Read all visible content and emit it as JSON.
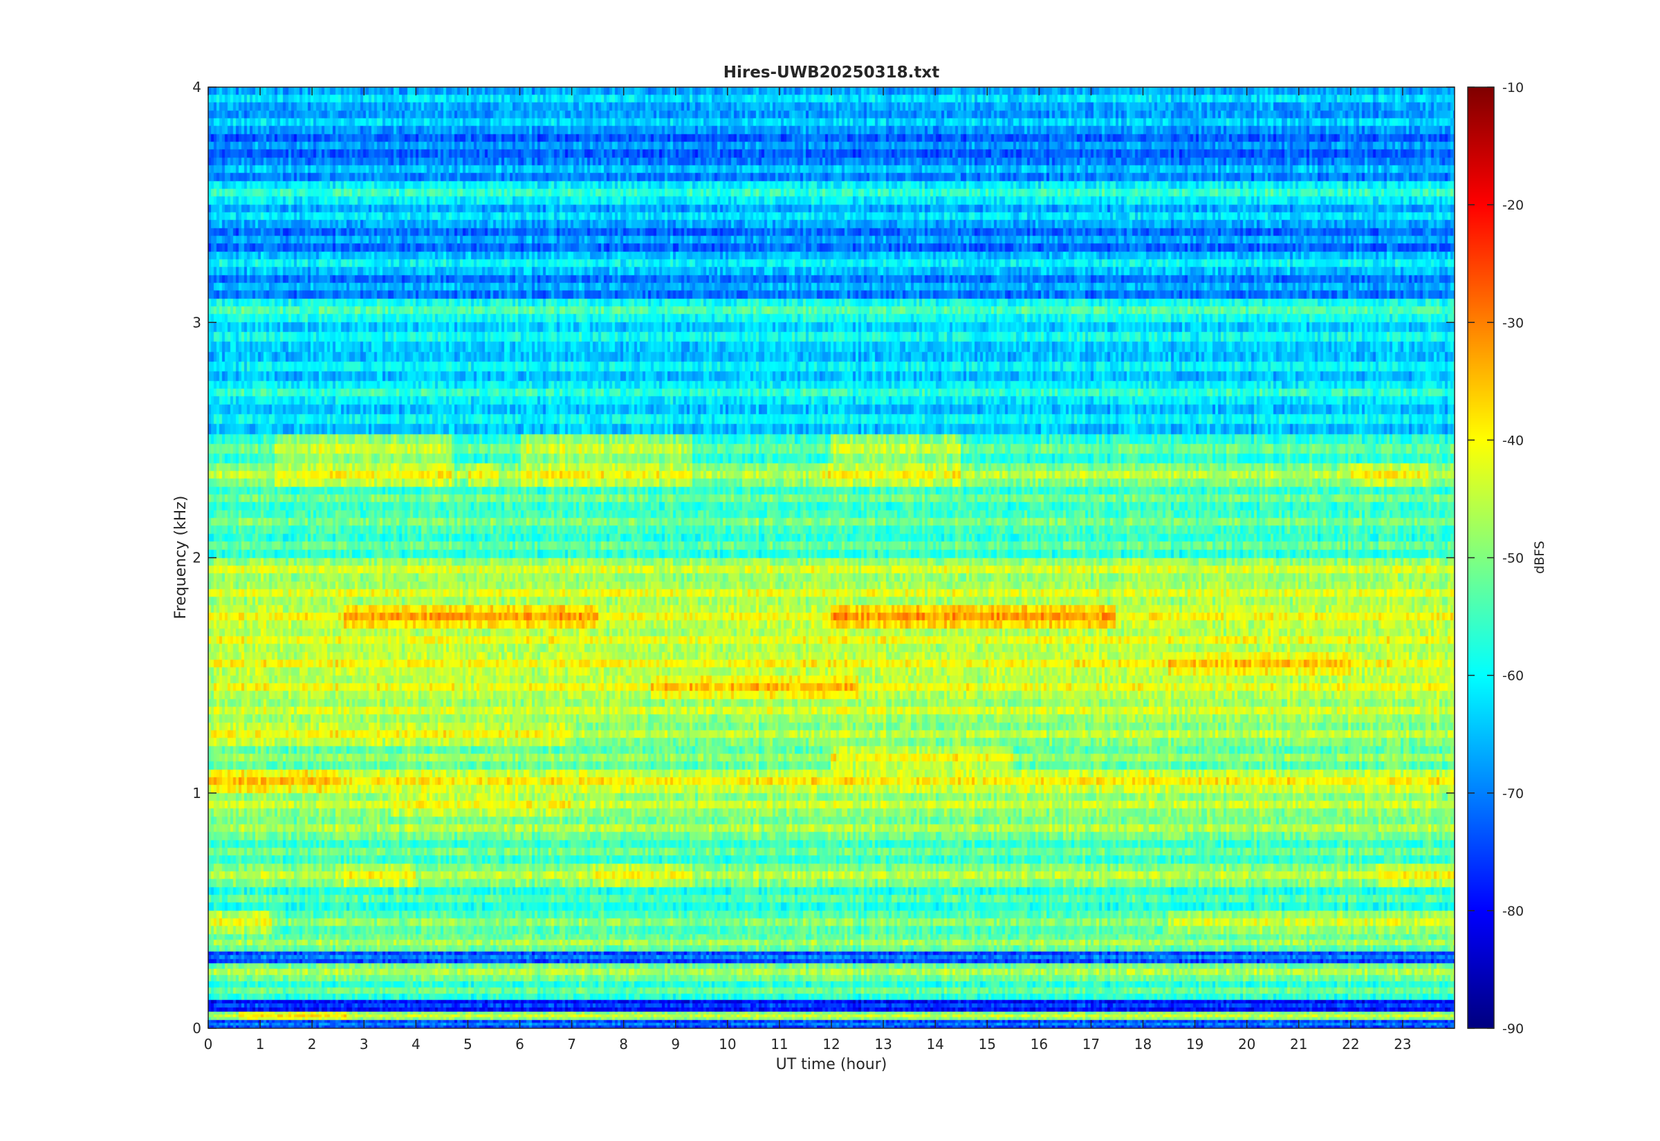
{
  "chart_data": {
    "type": "heatmap",
    "title": "Hires-UWB20250318.txt",
    "xlabel": "UT time (hour)",
    "ylabel": "Frequency (kHz)",
    "colorbar_label": "dBFS",
    "colormap": "jet",
    "xlim": [
      0,
      24
    ],
    "ylim": [
      0,
      4
    ],
    "clim": [
      -90,
      -10
    ],
    "x_ticks": [
      0,
      1,
      2,
      3,
      4,
      5,
      6,
      7,
      8,
      9,
      10,
      11,
      12,
      13,
      14,
      15,
      16,
      17,
      18,
      19,
      20,
      21,
      22,
      23
    ],
    "y_ticks": [
      0,
      1,
      2,
      3,
      4
    ],
    "colorbar_ticks": [
      -90,
      -80,
      -70,
      -60,
      -50,
      -40,
      -30,
      -20,
      -10
    ],
    "grid": false,
    "background_level_dbfs": -63,
    "bands": [
      {
        "freq_khz": 0.02,
        "level_dbfs": -70
      },
      {
        "freq_khz": 0.05,
        "level_dbfs": -44,
        "segments": [
          {
            "x_start": 0.6,
            "x_end": 2.7,
            "level_dbfs": -38
          }
        ]
      },
      {
        "freq_khz": 0.09,
        "level_dbfs": -75
      },
      {
        "freq_khz": 0.15,
        "level_dbfs": -52
      },
      {
        "freq_khz": 0.25,
        "level_dbfs": -46
      },
      {
        "freq_khz": 0.3,
        "level_dbfs": -70
      },
      {
        "freq_khz": 0.35,
        "level_dbfs": -47
      },
      {
        "freq_khz": 0.45,
        "level_dbfs": -49,
        "segments": [
          {
            "x_start": 0,
            "x_end": 1.2,
            "level_dbfs": -41
          },
          {
            "x_start": 18.5,
            "x_end": 24,
            "level_dbfs": -43
          }
        ]
      },
      {
        "freq_khz": 0.55,
        "level_dbfs": -53
      },
      {
        "freq_khz": 0.65,
        "level_dbfs": -45,
        "segments": [
          {
            "x_start": 2.6,
            "x_end": 4.0,
            "level_dbfs": -40
          },
          {
            "x_start": 7.4,
            "x_end": 9.3,
            "level_dbfs": -40
          },
          {
            "x_start": 22.5,
            "x_end": 24,
            "level_dbfs": -40
          }
        ]
      },
      {
        "freq_khz": 0.75,
        "level_dbfs": -51
      },
      {
        "freq_khz": 0.85,
        "level_dbfs": -46
      },
      {
        "freq_khz": 0.95,
        "level_dbfs": -44,
        "segments": [
          {
            "x_start": 3.5,
            "x_end": 7.0,
            "level_dbfs": -40
          }
        ]
      },
      {
        "freq_khz": 1.05,
        "level_dbfs": -39,
        "segments": [
          {
            "x_start": 0,
            "x_end": 2.5,
            "level_dbfs": -35
          }
        ]
      },
      {
        "freq_khz": 1.15,
        "level_dbfs": -48,
        "segments": [
          {
            "x_start": 12,
            "x_end": 15.5,
            "level_dbfs": -40
          }
        ]
      },
      {
        "freq_khz": 1.25,
        "level_dbfs": -45,
        "segments": [
          {
            "x_start": 0,
            "x_end": 7.0,
            "level_dbfs": -40
          }
        ]
      },
      {
        "freq_khz": 1.35,
        "level_dbfs": -43
      },
      {
        "freq_khz": 1.45,
        "level_dbfs": -41,
        "segments": [
          {
            "x_start": 8.5,
            "x_end": 12.5,
            "level_dbfs": -35
          }
        ]
      },
      {
        "freq_khz": 1.55,
        "level_dbfs": -40,
        "segments": [
          {
            "x_start": 18.5,
            "x_end": 22,
            "level_dbfs": -35
          }
        ]
      },
      {
        "freq_khz": 1.65,
        "level_dbfs": -41
      },
      {
        "freq_khz": 1.75,
        "level_dbfs": -40,
        "segments": [
          {
            "x_start": 2.6,
            "x_end": 7.5,
            "level_dbfs": -33
          },
          {
            "x_start": 12,
            "x_end": 17.5,
            "level_dbfs": -32
          }
        ]
      },
      {
        "freq_khz": 1.85,
        "level_dbfs": -42
      },
      {
        "freq_khz": 1.95,
        "level_dbfs": -43
      },
      {
        "freq_khz": 2.05,
        "level_dbfs": -52
      },
      {
        "freq_khz": 2.15,
        "level_dbfs": -50
      },
      {
        "freq_khz": 2.25,
        "level_dbfs": -51
      },
      {
        "freq_khz": 2.35,
        "level_dbfs": -45,
        "segments": [
          {
            "x_start": 1.3,
            "x_end": 4.7,
            "level_dbfs": -40
          },
          {
            "x_start": 5.0,
            "x_end": 5.6,
            "level_dbfs": -40
          },
          {
            "x_start": 6.0,
            "x_end": 9.3,
            "level_dbfs": -40
          },
          {
            "x_start": 11.8,
            "x_end": 14.5,
            "level_dbfs": -40
          },
          {
            "x_start": 22,
            "x_end": 23.5,
            "level_dbfs": -40
          }
        ]
      },
      {
        "freq_khz": 2.45,
        "level_dbfs": -52,
        "segments": [
          {
            "x_start": 1.3,
            "x_end": 4.7,
            "level_dbfs": -44
          },
          {
            "x_start": 6.0,
            "x_end": 9.3,
            "level_dbfs": -44
          },
          {
            "x_start": 12,
            "x_end": 14.5,
            "level_dbfs": -44
          }
        ]
      },
      {
        "freq_khz": 2.6,
        "level_dbfs": -60
      },
      {
        "freq_khz": 2.7,
        "level_dbfs": -56
      },
      {
        "freq_khz": 2.8,
        "level_dbfs": -60
      },
      {
        "freq_khz": 2.95,
        "level_dbfs": -59
      },
      {
        "freq_khz": 3.05,
        "level_dbfs": -54
      },
      {
        "freq_khz": 3.15,
        "level_dbfs": -66
      },
      {
        "freq_khz": 3.25,
        "level_dbfs": -60
      },
      {
        "freq_khz": 3.35,
        "level_dbfs": -67
      },
      {
        "freq_khz": 3.45,
        "level_dbfs": -62
      },
      {
        "freq_khz": 3.55,
        "level_dbfs": -56
      },
      {
        "freq_khz": 3.65,
        "level_dbfs": -65
      },
      {
        "freq_khz": 3.75,
        "level_dbfs": -68
      },
      {
        "freq_khz": 3.85,
        "level_dbfs": -63
      },
      {
        "freq_khz": 3.95,
        "level_dbfs": -62
      }
    ]
  }
}
